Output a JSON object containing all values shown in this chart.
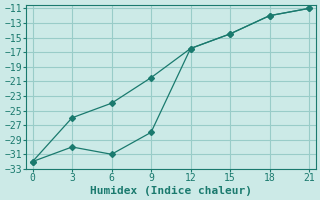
{
  "xlabel": "Humidex (Indice chaleur)",
  "bg_color": "#cceae7",
  "grid_color": "#99ccc8",
  "line_color": "#1a7a6e",
  "line1_x": [
    0,
    3,
    6,
    9,
    12,
    15,
    18,
    21
  ],
  "line1_y": [
    -32,
    -26,
    -24,
    -20.5,
    -16.5,
    -14.5,
    -12.0,
    -11
  ],
  "line2_x": [
    0,
    3,
    6,
    9,
    12,
    15,
    18,
    21
  ],
  "line2_y": [
    -32,
    -30,
    -31,
    -28,
    -16.5,
    -14.5,
    -12.0,
    -11
  ],
  "xlim": [
    -0.5,
    21.5
  ],
  "ylim": [
    -33,
    -10.5
  ],
  "xticks": [
    0,
    3,
    6,
    9,
    12,
    15,
    18,
    21
  ],
  "yticks": [
    -11,
    -13,
    -15,
    -17,
    -19,
    -21,
    -23,
    -25,
    -27,
    -29,
    -31,
    -33
  ],
  "marker": "D",
  "marker_size": 3,
  "font_family": "monospace",
  "tick_fontsize": 7,
  "xlabel_fontsize": 8
}
